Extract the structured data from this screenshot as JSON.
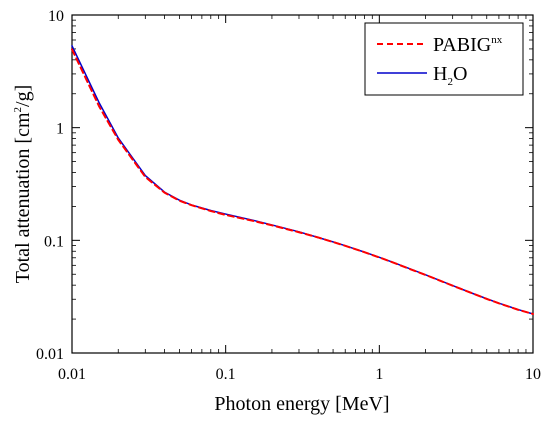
{
  "chart_data": {
    "type": "line",
    "title": "",
    "xlabel": "Photon energy [MeV]",
    "ylabel": {
      "base": "Total attenuation [cm",
      "sup": "2",
      "tail": "/g]"
    },
    "xscale": "log",
    "yscale": "log",
    "xlim": [
      0.01,
      10
    ],
    "ylim": [
      0.01,
      10
    ],
    "xticks": [
      0.01,
      0.1,
      1,
      10
    ],
    "xtick_labels": [
      "0.01",
      "0.1",
      "1",
      "10"
    ],
    "yticks": [
      0.01,
      0.1,
      1,
      10
    ],
    "ytick_labels": [
      "0.01",
      "0.1",
      "1",
      "10"
    ],
    "grid": false,
    "legend_position": "top-right",
    "series": [
      {
        "name": "PABIGnx",
        "label_main": "PABIG",
        "label_sup": "nx",
        "color": "#ff0000",
        "style": "dashed",
        "x": [
          0.01,
          0.015,
          0.02,
          0.03,
          0.04,
          0.05,
          0.06,
          0.08,
          0.1,
          0.15,
          0.2,
          0.3,
          0.4,
          0.5,
          0.6,
          0.8,
          1,
          1.25,
          1.5,
          2,
          3,
          4,
          5,
          6,
          8,
          10
        ],
        "y": [
          4.95,
          1.55,
          0.78,
          0.365,
          0.265,
          0.225,
          0.205,
          0.182,
          0.168,
          0.149,
          0.136,
          0.118,
          0.106,
          0.0966,
          0.0894,
          0.0785,
          0.0705,
          0.063,
          0.0572,
          0.0493,
          0.0396,
          0.034,
          0.0302,
          0.0276,
          0.0242,
          0.0222
        ]
      },
      {
        "name": "H2O",
        "label_main": "H",
        "label_sub": "2",
        "label_tail": "O",
        "color": "#0000cc",
        "style": "solid",
        "x": [
          0.01,
          0.015,
          0.02,
          0.03,
          0.04,
          0.05,
          0.06,
          0.08,
          0.1,
          0.15,
          0.2,
          0.3,
          0.4,
          0.5,
          0.6,
          0.8,
          1,
          1.25,
          1.5,
          2,
          3,
          4,
          5,
          6,
          8,
          10
        ],
        "y": [
          5.33,
          1.67,
          0.81,
          0.376,
          0.268,
          0.227,
          0.206,
          0.184,
          0.171,
          0.151,
          0.137,
          0.119,
          0.106,
          0.0969,
          0.0896,
          0.0786,
          0.0707,
          0.0632,
          0.0575,
          0.0494,
          0.0397,
          0.034,
          0.0303,
          0.0277,
          0.0243,
          0.0222
        ]
      }
    ]
  }
}
